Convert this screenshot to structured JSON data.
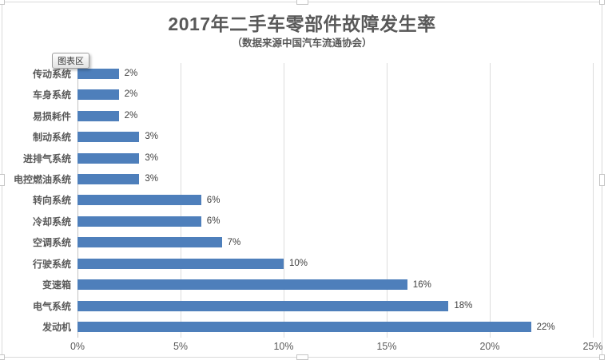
{
  "tooltip": {
    "text": "图表区"
  },
  "colors": {
    "bar": "#4e7fbb",
    "title_text": "#595959",
    "category_text": "#595959",
    "value_text": "#404040",
    "tick_text": "#595959",
    "gridline": "#dcdcdc",
    "axis_line": "#c3c3c3",
    "frame_border": "#d9d9d9"
  },
  "chart_data": {
    "type": "bar",
    "orientation": "horizontal",
    "title": "2017年二手车零部件故障发生率",
    "subtitle": "（数据来源中国汽车流通协会）",
    "categories": [
      "传动系统",
      "车身系统",
      "易损耗件",
      "制动系统",
      "进排气系统",
      "电控燃油系统",
      "转向系统",
      "冷却系统",
      "空调系统",
      "行驶系统",
      "变速箱",
      "电气系统",
      "发动机"
    ],
    "values": [
      2,
      2,
      2,
      3,
      3,
      3,
      6,
      6,
      7,
      10,
      16,
      18,
      22
    ],
    "value_labels": [
      "2%",
      "2%",
      "2%",
      "3%",
      "3%",
      "3%",
      "6%",
      "6%",
      "7%",
      "10%",
      "16%",
      "18%",
      "22%"
    ],
    "xlabel": "",
    "ylabel": "",
    "xlim": [
      0,
      25
    ],
    "x_ticks": [
      "0%",
      "5%",
      "10%",
      "15%",
      "20%",
      "25%"
    ],
    "x_tick_values": [
      0,
      5,
      10,
      15,
      20,
      25
    ],
    "grid": true,
    "legend": false
  }
}
